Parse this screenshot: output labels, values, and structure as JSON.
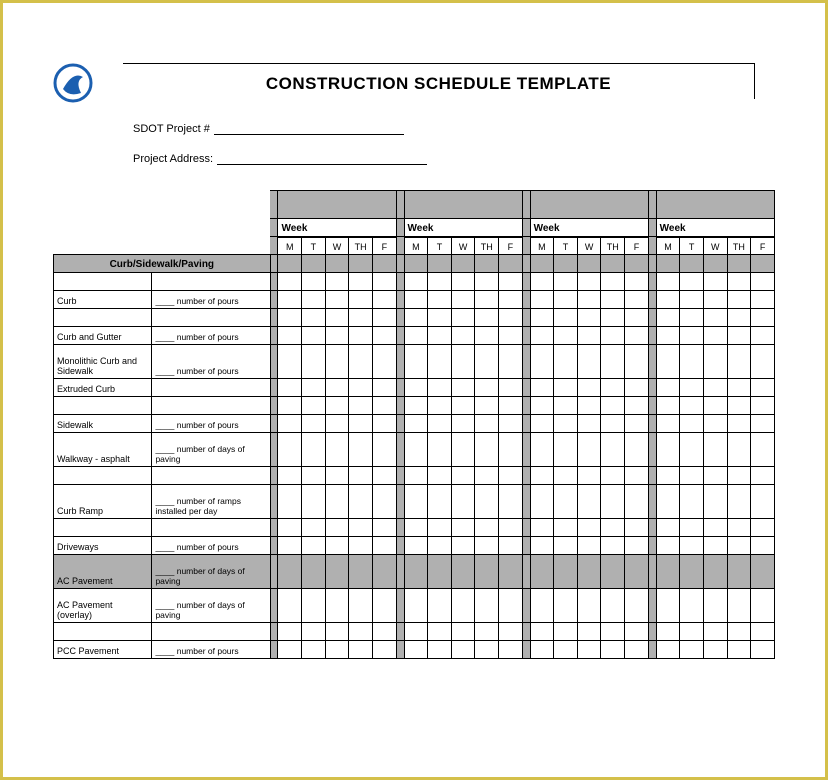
{
  "title": "CONSTRUCTION SCHEDULE TEMPLATE",
  "project_number_label": "SDOT Project #",
  "project_address_label": "Project Address:",
  "week_label": "Week",
  "day_headers": [
    "M",
    "T",
    "W",
    "TH",
    "F"
  ],
  "num_week_blocks": 4,
  "section_header": "Curb/Sidewalk/Paving",
  "rows": [
    {
      "task": "",
      "detail": "",
      "tall": false,
      "section_bg": false
    },
    {
      "task": "Curb",
      "detail": "____ number of pours",
      "tall": false,
      "section_bg": false
    },
    {
      "task": "",
      "detail": "",
      "tall": false,
      "section_bg": false
    },
    {
      "task": "Curb and Gutter",
      "detail": "____ number of pours",
      "tall": false,
      "section_bg": false
    },
    {
      "task": "Monolithic Curb and Sidewalk",
      "detail": "____ number of pours",
      "tall": true,
      "section_bg": false
    },
    {
      "task": "Extruded Curb",
      "detail": "",
      "tall": false,
      "section_bg": false
    },
    {
      "task": "",
      "detail": "",
      "tall": false,
      "section_bg": false
    },
    {
      "task": "Sidewalk",
      "detail": "____ number of pours",
      "tall": false,
      "section_bg": false
    },
    {
      "task": "Walkway - asphalt",
      "detail": "____ number of days of paving",
      "tall": true,
      "section_bg": false
    },
    {
      "task": "",
      "detail": "",
      "tall": false,
      "section_bg": false
    },
    {
      "task": "Curb Ramp",
      "detail": "____ number of ramps installed per day",
      "tall": true,
      "section_bg": false
    },
    {
      "task": "",
      "detail": "",
      "tall": false,
      "section_bg": false
    },
    {
      "task": "Driveways",
      "detail": "____ number of pours",
      "tall": false,
      "section_bg": false
    },
    {
      "task": "AC Pavement",
      "detail": "____ number of days of paving",
      "tall": true,
      "section_bg": true
    },
    {
      "task": "AC Pavement (overlay)",
      "detail": "____ number of days of paving",
      "tall": true,
      "section_bg": false
    },
    {
      "task": "",
      "detail": "",
      "tall": false,
      "section_bg": false
    },
    {
      "task": "PCC Pavement",
      "detail": "____ number of pours",
      "tall": false,
      "section_bg": false
    }
  ],
  "colors": {
    "frame_border": "#d4c04a",
    "gray_fill": "#b0b0b0",
    "grid_line": "#000000",
    "background": "#ffffff",
    "logo_primary": "#1b5fb0"
  },
  "typography": {
    "title_fontsize_pt": 17,
    "label_fontsize_pt": 11,
    "table_fontsize_pt": 9
  }
}
